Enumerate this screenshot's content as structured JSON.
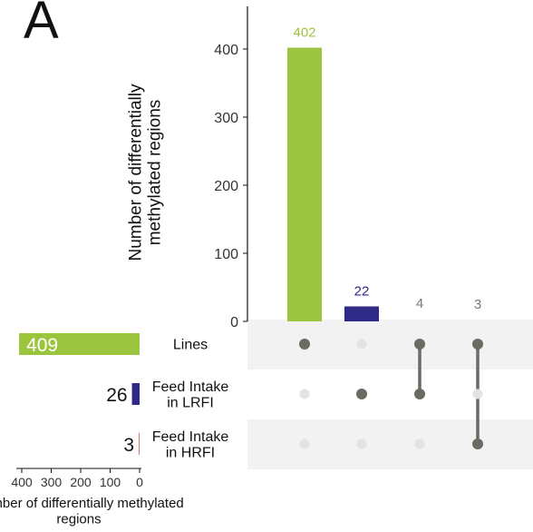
{
  "panel_label": "A",
  "colors": {
    "lines": "#9bc43f",
    "lrfi": "#2f2a86",
    "hrfi": "#e06f6f",
    "connector": "#6b6b64",
    "empty_dot": "#e3e3e3",
    "band": "#f2f2f2"
  },
  "chart_data": {
    "type": "bar",
    "subtype": "upset",
    "intersection_bars": {
      "ylabel": "Number of differentially methylated regions",
      "ylim": [
        0,
        420
      ],
      "yticks": [
        0,
        100,
        200,
        300,
        400
      ],
      "values": [
        402,
        22,
        4,
        3
      ],
      "value_labels": [
        "402",
        "22",
        "4",
        "3"
      ],
      "label_colors": [
        "#9bc43f",
        "#2f2a86",
        "#777777",
        "#777777"
      ],
      "bar_colors": [
        "#9bc43f",
        "#2f2a86",
        null,
        null
      ],
      "memberships": [
        [
          0
        ],
        [
          1
        ],
        [
          0,
          1
        ],
        [
          0,
          2
        ]
      ]
    },
    "sets": {
      "names": [
        "Lines",
        "Feed Intake in LRFI",
        "Feed Intake in HRFI"
      ],
      "sizes": [
        409,
        26,
        3
      ],
      "size_labels": [
        "409",
        "26",
        "3"
      ],
      "colors": [
        "#9bc43f",
        "#2f2a86",
        "#e06f6f"
      ],
      "xlabel": "Number of differentially methylated regions",
      "xlim": [
        0,
        420
      ],
      "xticks": [
        0,
        100,
        200,
        300,
        400
      ],
      "xtick_labels": [
        "0",
        "100",
        "200",
        "300",
        "400"
      ]
    },
    "grid": false,
    "legend": "none"
  }
}
